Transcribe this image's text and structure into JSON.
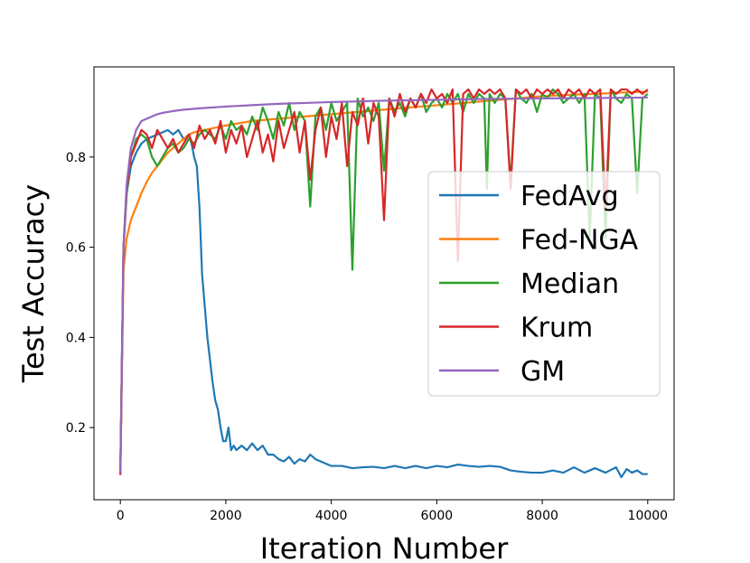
{
  "chart_data": {
    "type": "line",
    "title": "",
    "xlabel": "Iteration Number",
    "ylabel": "Test Accuracy",
    "xlim": [
      -500,
      10500
    ],
    "ylim": [
      0.04,
      1.0
    ],
    "xticks": [
      0,
      2000,
      4000,
      6000,
      8000,
      10000
    ],
    "xtick_labels": [
      "0",
      "2000",
      "4000",
      "6000",
      "8000",
      "10000"
    ],
    "yticks": [
      0.2,
      0.4,
      0.6,
      0.8
    ],
    "ytick_labels": [
      "0.2",
      "0.4",
      "0.6",
      "0.8"
    ],
    "grid": false,
    "legend_position": "center-right",
    "series": [
      {
        "name": "FedAvg",
        "color": "#1f77b4",
        "x": [
          0,
          60,
          120,
          200,
          300,
          400,
          500,
          600,
          700,
          800,
          900,
          1000,
          1100,
          1200,
          1300,
          1350,
          1400,
          1450,
          1500,
          1550,
          1600,
          1650,
          1700,
          1750,
          1800,
          1850,
          1900,
          1950,
          2000,
          2050,
          2100,
          2150,
          2200,
          2300,
          2400,
          2500,
          2600,
          2700,
          2800,
          2900,
          3000,
          3100,
          3200,
          3300,
          3400,
          3500,
          3600,
          3700,
          3800,
          3900,
          4000,
          4200,
          4400,
          4600,
          4800,
          5000,
          5200,
          5400,
          5600,
          5800,
          6000,
          6200,
          6400,
          6600,
          6800,
          7000,
          7200,
          7400,
          7600,
          7800,
          8000,
          8200,
          8400,
          8600,
          8800,
          9000,
          9200,
          9400,
          9500,
          9600,
          9700,
          9800,
          9900,
          10000
        ],
        "y": [
          0.1,
          0.6,
          0.72,
          0.78,
          0.81,
          0.83,
          0.84,
          0.845,
          0.85,
          0.855,
          0.86,
          0.85,
          0.86,
          0.84,
          0.85,
          0.83,
          0.8,
          0.78,
          0.69,
          0.54,
          0.47,
          0.4,
          0.35,
          0.3,
          0.26,
          0.24,
          0.2,
          0.17,
          0.17,
          0.2,
          0.15,
          0.16,
          0.15,
          0.16,
          0.15,
          0.165,
          0.15,
          0.16,
          0.14,
          0.14,
          0.13,
          0.125,
          0.135,
          0.12,
          0.13,
          0.125,
          0.14,
          0.13,
          0.125,
          0.12,
          0.115,
          0.115,
          0.11,
          0.112,
          0.113,
          0.11,
          0.115,
          0.11,
          0.115,
          0.11,
          0.115,
          0.112,
          0.118,
          0.115,
          0.113,
          0.115,
          0.113,
          0.105,
          0.102,
          0.1,
          0.1,
          0.105,
          0.1,
          0.112,
          0.1,
          0.11,
          0.1,
          0.112,
          0.09,
          0.108,
          0.1,
          0.105,
          0.097,
          0.097
        ]
      },
      {
        "name": "Fed-NGA",
        "color": "#ff7f0e",
        "x": [
          0,
          60,
          120,
          200,
          300,
          400,
          500,
          600,
          700,
          800,
          900,
          1000,
          1100,
          1200,
          1300,
          1400,
          1600,
          1800,
          2000,
          2500,
          3000,
          3500,
          4000,
          4500,
          5000,
          5500,
          6000,
          6500,
          7000,
          7500,
          8000,
          8500,
          9000,
          9500,
          10000
        ],
        "y": [
          0.095,
          0.55,
          0.62,
          0.66,
          0.69,
          0.72,
          0.745,
          0.765,
          0.78,
          0.795,
          0.81,
          0.82,
          0.83,
          0.84,
          0.85,
          0.855,
          0.86,
          0.865,
          0.87,
          0.88,
          0.885,
          0.89,
          0.895,
          0.9,
          0.905,
          0.91,
          0.915,
          0.92,
          0.925,
          0.93,
          0.935,
          0.938,
          0.94,
          0.943,
          0.945
        ]
      },
      {
        "name": "Median",
        "color": "#2ca02c",
        "x": [
          0,
          60,
          120,
          200,
          300,
          400,
          500,
          600,
          700,
          800,
          900,
          1000,
          1100,
          1200,
          1300,
          1400,
          1500,
          1600,
          1700,
          1800,
          1900,
          2000,
          2100,
          2200,
          2300,
          2400,
          2500,
          2600,
          2700,
          2800,
          2900,
          3000,
          3100,
          3200,
          3300,
          3400,
          3500,
          3600,
          3700,
          3800,
          3900,
          4000,
          4100,
          4200,
          4300,
          4400,
          4500,
          4600,
          4700,
          4800,
          4900,
          5000,
          5100,
          5200,
          5300,
          5400,
          5500,
          5600,
          5700,
          5800,
          5900,
          6000,
          6100,
          6200,
          6300,
          6400,
          6500,
          6600,
          6700,
          6800,
          6900,
          6950,
          7000,
          7100,
          7200,
          7300,
          7400,
          7500,
          7600,
          7700,
          7800,
          7900,
          8000,
          8100,
          8200,
          8300,
          8400,
          8500,
          8600,
          8700,
          8800,
          8900,
          9000,
          9100,
          9200,
          9300,
          9400,
          9500,
          9600,
          9700,
          9800,
          9900,
          10000
        ],
        "y": [
          0.1,
          0.6,
          0.72,
          0.8,
          0.84,
          0.85,
          0.84,
          0.8,
          0.78,
          0.8,
          0.82,
          0.83,
          0.81,
          0.82,
          0.84,
          0.83,
          0.85,
          0.86,
          0.85,
          0.84,
          0.87,
          0.84,
          0.88,
          0.86,
          0.87,
          0.85,
          0.89,
          0.86,
          0.91,
          0.88,
          0.84,
          0.9,
          0.87,
          0.92,
          0.86,
          0.9,
          0.88,
          0.69,
          0.89,
          0.91,
          0.86,
          0.92,
          0.88,
          0.9,
          0.92,
          0.55,
          0.93,
          0.89,
          0.91,
          0.88,
          0.92,
          0.77,
          0.93,
          0.9,
          0.92,
          0.89,
          0.93,
          0.91,
          0.94,
          0.9,
          0.92,
          0.93,
          0.91,
          0.94,
          0.92,
          0.94,
          0.9,
          0.94,
          0.92,
          0.94,
          0.93,
          0.73,
          0.94,
          0.92,
          0.94,
          0.93,
          0.74,
          0.95,
          0.93,
          0.92,
          0.94,
          0.9,
          0.94,
          0.93,
          0.95,
          0.94,
          0.92,
          0.93,
          0.94,
          0.92,
          0.94,
          0.62,
          0.94,
          0.93,
          0.62,
          0.95,
          0.93,
          0.92,
          0.94,
          0.93,
          0.72,
          0.93,
          0.94
        ]
      },
      {
        "name": "Krum",
        "color": "#d62728",
        "x": [
          0,
          60,
          120,
          200,
          300,
          400,
          500,
          600,
          700,
          800,
          900,
          1000,
          1100,
          1200,
          1300,
          1400,
          1500,
          1600,
          1700,
          1800,
          1900,
          2000,
          2100,
          2200,
          2300,
          2400,
          2500,
          2600,
          2700,
          2800,
          2900,
          3000,
          3100,
          3200,
          3300,
          3400,
          3500,
          3600,
          3700,
          3800,
          3900,
          4000,
          4100,
          4200,
          4300,
          4400,
          4500,
          4600,
          4700,
          4800,
          4900,
          5000,
          5100,
          5200,
          5300,
          5400,
          5500,
          5600,
          5700,
          5800,
          5900,
          6000,
          6100,
          6200,
          6300,
          6400,
          6500,
          6600,
          6700,
          6800,
          6900,
          7000,
          7100,
          7200,
          7300,
          7400,
          7500,
          7600,
          7700,
          7800,
          7900,
          8000,
          8100,
          8200,
          8300,
          8400,
          8500,
          8600,
          8700,
          8800,
          8900,
          9000,
          9100,
          9200,
          9300,
          9400,
          9500,
          9600,
          9700,
          9800,
          9900,
          10000
        ],
        "y": [
          0.095,
          0.6,
          0.73,
          0.8,
          0.83,
          0.86,
          0.85,
          0.82,
          0.86,
          0.84,
          0.82,
          0.84,
          0.81,
          0.83,
          0.85,
          0.82,
          0.87,
          0.84,
          0.86,
          0.83,
          0.88,
          0.81,
          0.86,
          0.83,
          0.87,
          0.8,
          0.84,
          0.88,
          0.81,
          0.85,
          0.79,
          0.88,
          0.82,
          0.86,
          0.9,
          0.81,
          0.88,
          0.75,
          0.86,
          0.91,
          0.8,
          0.89,
          0.84,
          0.92,
          0.78,
          0.9,
          0.87,
          0.93,
          0.83,
          0.92,
          0.89,
          0.66,
          0.93,
          0.89,
          0.94,
          0.9,
          0.93,
          0.91,
          0.94,
          0.92,
          0.95,
          0.93,
          0.94,
          0.92,
          0.95,
          0.57,
          0.94,
          0.95,
          0.93,
          0.95,
          0.94,
          0.95,
          0.94,
          0.95,
          0.93,
          0.73,
          0.95,
          0.94,
          0.95,
          0.93,
          0.95,
          0.94,
          0.95,
          0.94,
          0.95,
          0.93,
          0.95,
          0.94,
          0.95,
          0.93,
          0.95,
          0.94,
          0.95,
          0.68,
          0.95,
          0.94,
          0.95,
          0.95,
          0.94,
          0.95,
          0.94,
          0.95
        ]
      },
      {
        "name": "GM",
        "color": "#9467bd",
        "x": [
          0,
          60,
          120,
          200,
          300,
          400,
          500,
          600,
          700,
          800,
          900,
          1000,
          1200,
          1500,
          2000,
          2500,
          3000,
          3500,
          4000,
          5000,
          6000,
          7000,
          8000,
          9000,
          10000
        ],
        "y": [
          0.1,
          0.6,
          0.74,
          0.82,
          0.86,
          0.88,
          0.885,
          0.89,
          0.895,
          0.898,
          0.9,
          0.902,
          0.905,
          0.908,
          0.912,
          0.915,
          0.918,
          0.92,
          0.922,
          0.925,
          0.927,
          0.929,
          0.93,
          0.931,
          0.932
        ]
      }
    ]
  }
}
